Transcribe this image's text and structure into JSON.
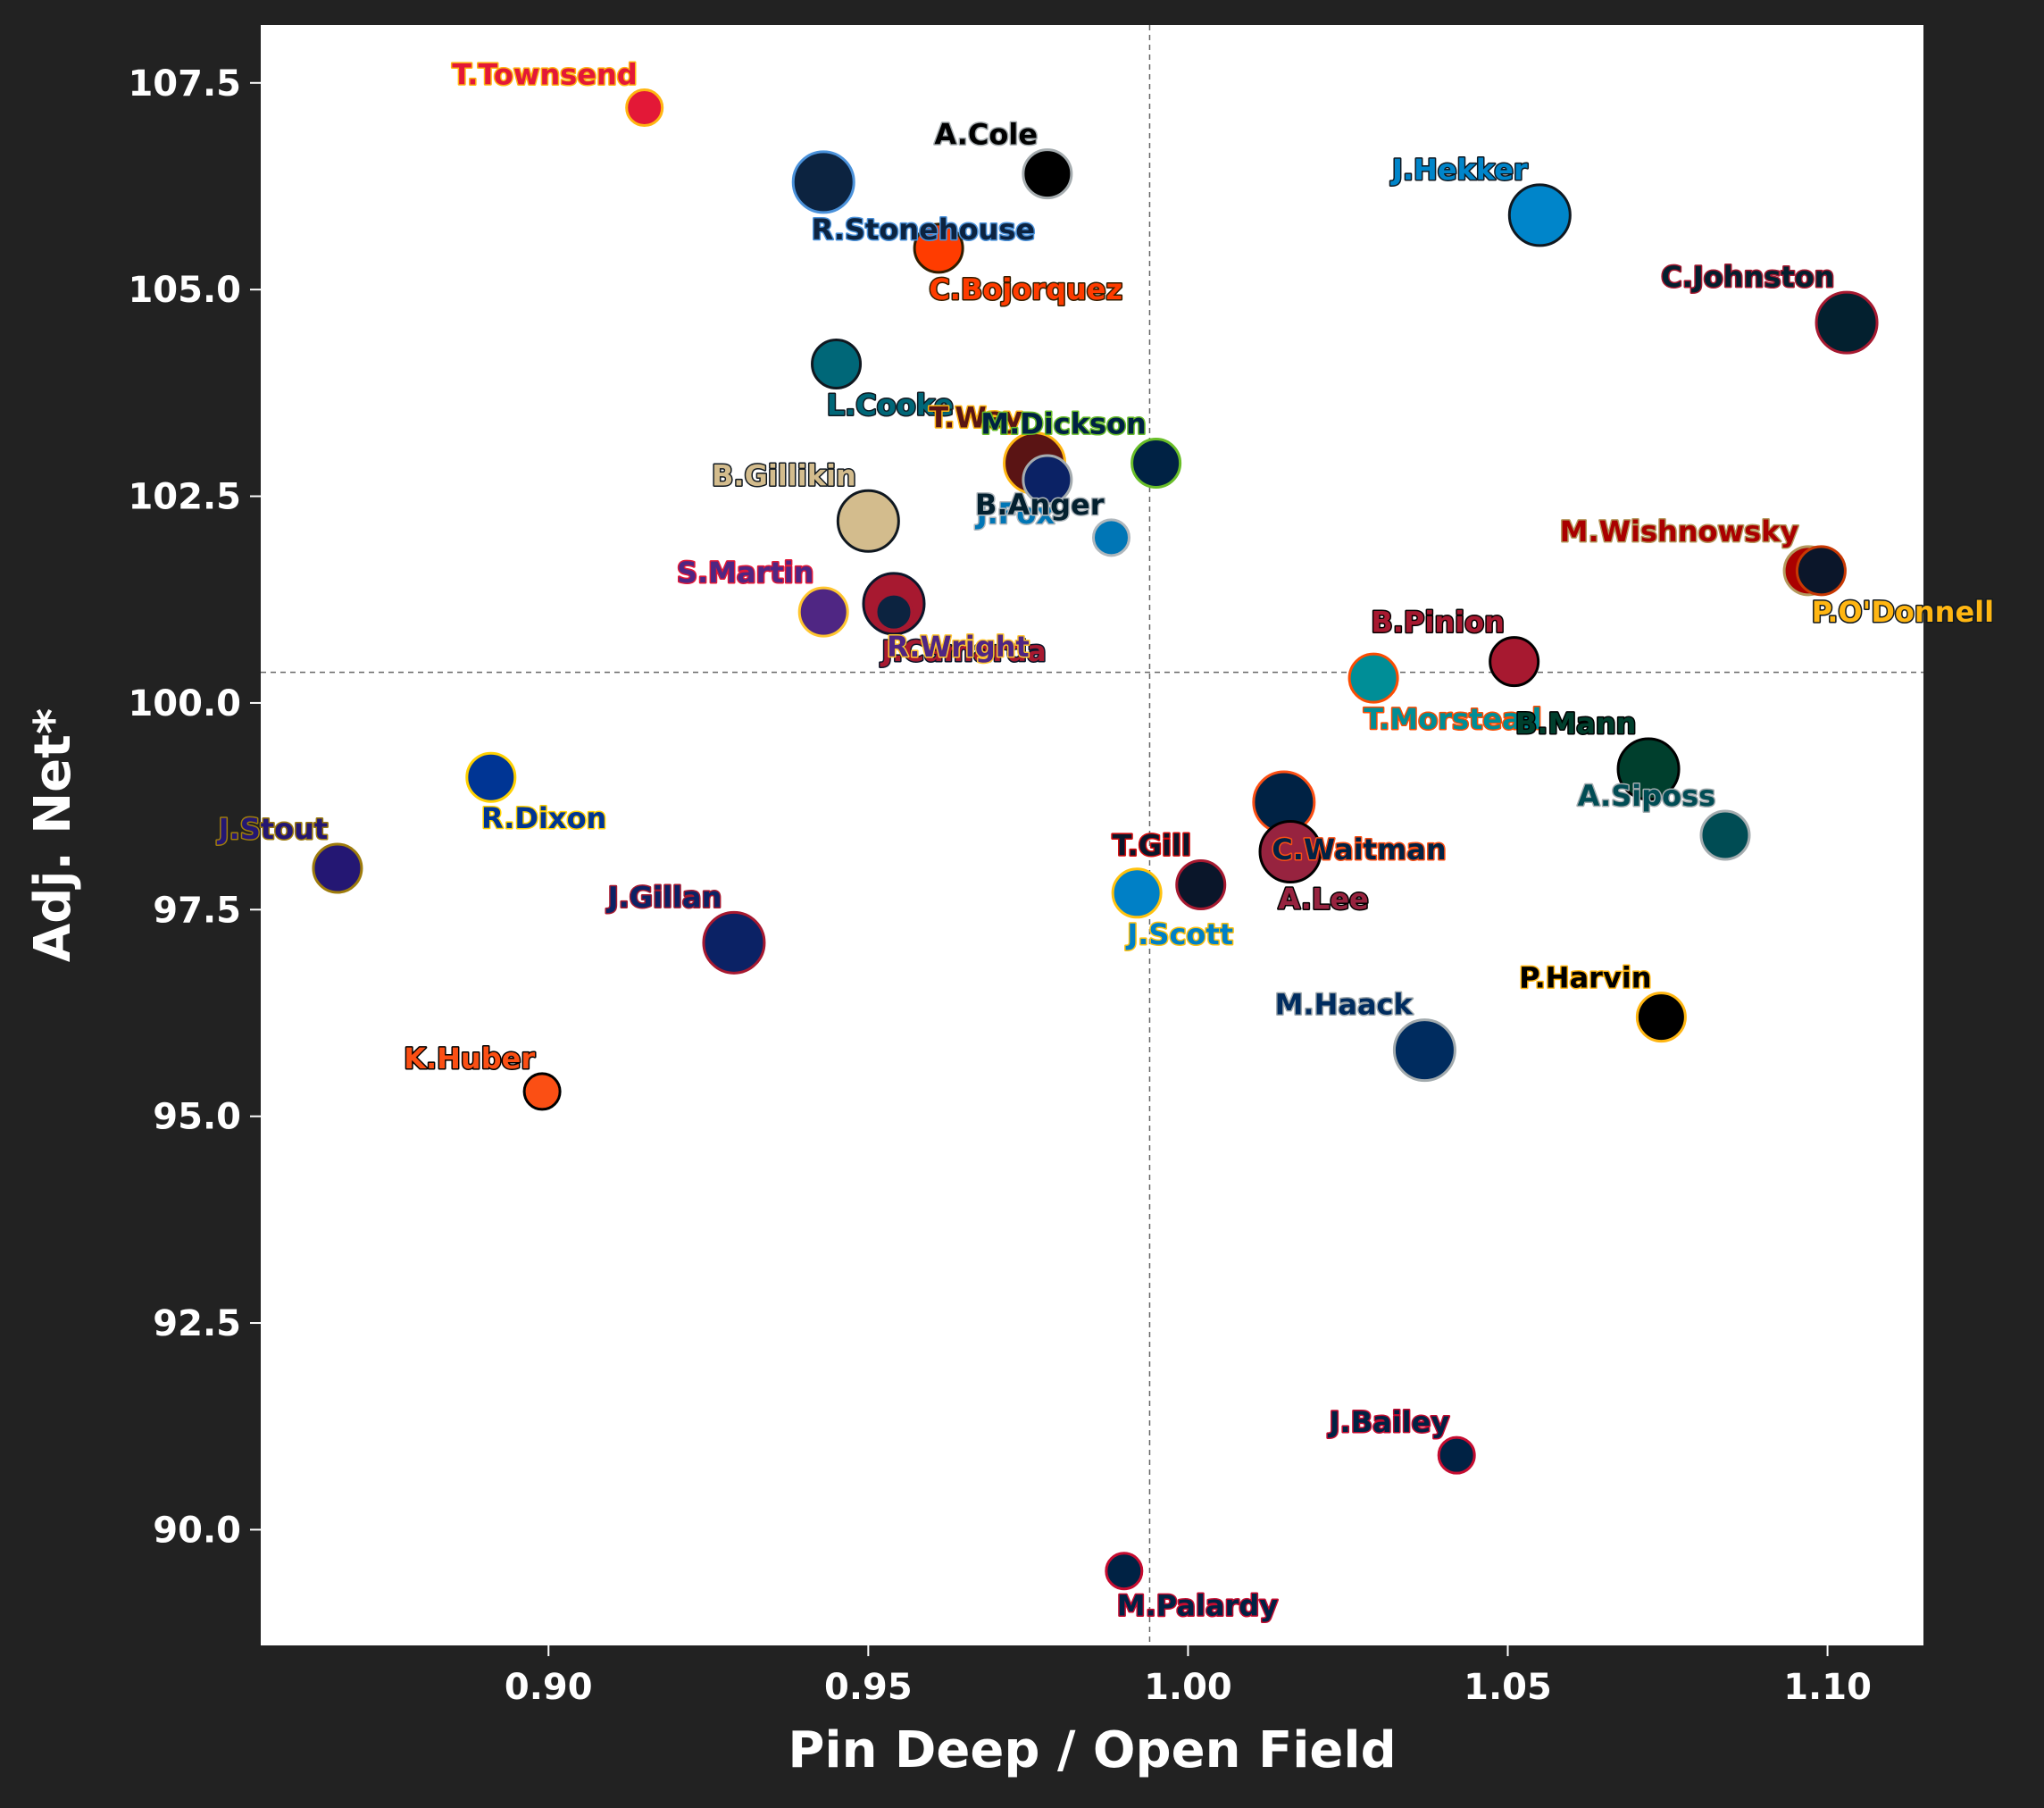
{
  "chart_data": {
    "type": "scatter",
    "xlabel": "Pin Deep / Open Field",
    "ylabel": "Adj. Net*",
    "xlim": [
      0.855,
      1.115
    ],
    "ylim": [
      88.6,
      108.2
    ],
    "xticks": [
      "0.90",
      "0.95",
      "1.00",
      "1.05",
      "1.10"
    ],
    "yticks": [
      "90.0",
      "92.5",
      "95.0",
      "97.5",
      "100.0",
      "102.5",
      "105.0",
      "107.5"
    ],
    "reference_lines": {
      "x": 0.994,
      "y": 100.37
    },
    "grid": false,
    "points": [
      {
        "label": "T.Townsend",
        "x": 0.915,
        "y": 107.2,
        "size": "small",
        "fill": "#e31837",
        "edge": "#ffb612",
        "text": "#e31837",
        "outline": "#ffb612",
        "label_pos": "tl"
      },
      {
        "label": "A.Cole",
        "x": 0.978,
        "y": 106.4,
        "size": "medium",
        "fill": "#000000",
        "edge": "#a5acaf",
        "text": "#000000",
        "outline": "#a5acaf",
        "label_pos": "tl"
      },
      {
        "label": "R.Stonehouse",
        "x": 0.943,
        "y": 106.3,
        "size": "large",
        "fill": "#0c2340",
        "edge": "#4b92db",
        "text": "#0c2340",
        "outline": "#4b92db",
        "label_pos": "br"
      },
      {
        "label": "J.Hekker",
        "x": 1.055,
        "y": 105.9,
        "size": "large",
        "fill": "#0085ca",
        "edge": "#101820",
        "text": "#0085ca",
        "outline": "#101820",
        "label_pos": "tl"
      },
      {
        "label": "C.Bojorquez",
        "x": 0.961,
        "y": 105.5,
        "size": "medium",
        "fill": "#ff3c00",
        "edge": "#311d00",
        "text": "#ff3c00",
        "outline": "#311d00",
        "label_pos": "br"
      },
      {
        "label": "C.Johnston",
        "x": 1.103,
        "y": 104.6,
        "size": "large",
        "fill": "#03202f",
        "edge": "#a71930",
        "text": "#03202f",
        "outline": "#a71930",
        "label_pos": "tl"
      },
      {
        "label": "L.Cooke",
        "x": 0.945,
        "y": 104.1,
        "size": "medium",
        "fill": "#006778",
        "edge": "#101820",
        "text": "#006778",
        "outline": "#101820",
        "label_pos": "br"
      },
      {
        "label": "T.Way",
        "x": 0.976,
        "y": 102.9,
        "size": "large",
        "fill": "#5a1414",
        "edge": "#ffb612",
        "text": "#5a1414",
        "outline": "#ffb612",
        "label_pos": "tl"
      },
      {
        "label": "M.Dickson",
        "x": 0.995,
        "y": 102.9,
        "size": "medium",
        "fill": "#002244",
        "edge": "#69be28",
        "text": "#002244",
        "outline": "#69be28",
        "label_pos": "tl"
      },
      {
        "label": "J.Fox",
        "x": 0.978,
        "y": 102.7,
        "size": "medium",
        "fill": "#0b2265",
        "edge": "#a5acaf",
        "text": "#0076b6",
        "outline": "#b0b7bc",
        "label_pos": "bl"
      },
      {
        "label": "B.Gillikin",
        "x": 0.95,
        "y": 102.2,
        "size": "large",
        "fill": "#d3bc8d",
        "edge": "#101820",
        "text": "#d3bc8d",
        "outline": "#101820",
        "label_pos": "tl"
      },
      {
        "label": "B.Anger",
        "x": 0.988,
        "y": 102.0,
        "size": "small",
        "fill": "#0076b6",
        "edge": "#b0b7bc",
        "text": "#03202f",
        "outline": "#b0b7bc",
        "label_pos": "tl"
      },
      {
        "label": "M.Wishnowsky",
        "x": 1.097,
        "y": 101.6,
        "size": "medium",
        "fill": "#aa0000",
        "edge": "#b3995d",
        "text": "#aa0000",
        "outline": "#b3995d",
        "label_pos": "tl"
      },
      {
        "label": "P.O'Donnell",
        "x": 1.099,
        "y": 101.6,
        "size": "medium",
        "fill": "#0b162a",
        "edge": "#c83803",
        "text": "#ffb612",
        "outline": "#101820",
        "label_pos": "br"
      },
      {
        "label": "J.Camarda",
        "x": 0.954,
        "y": 101.2,
        "size": "large",
        "fill": "#a71930",
        "edge": "#0b162a",
        "text": "#a71930",
        "outline": "#0b162a",
        "label_pos": "br"
      },
      {
        "label": "S.Martin",
        "x": 0.943,
        "y": 101.1,
        "size": "medium",
        "fill": "#4f2683",
        "edge": "#ffc62f",
        "text": "#4f2683",
        "outline": "#e31837",
        "label_pos": "tl"
      },
      {
        "label": "R.Wright",
        "x": 0.954,
        "y": 101.1,
        "size": "small",
        "fill": "#0c2340",
        "edge": "#a71930",
        "text": "#4f2683",
        "outline": "#ffc62f",
        "label_pos": "br"
      },
      {
        "label": "B.Pinion",
        "x": 1.051,
        "y": 100.5,
        "size": "medium",
        "fill": "#a71930",
        "edge": "#000000",
        "text": "#a71930",
        "outline": "#000000",
        "label_pos": "tl"
      },
      {
        "label": "T.Morstead",
        "x": 1.029,
        "y": 100.3,
        "size": "medium",
        "fill": "#008e97",
        "edge": "#fc4c02",
        "text": "#008e97",
        "outline": "#fc4c02",
        "label_pos": "br"
      },
      {
        "label": "B.Mann",
        "x": 1.072,
        "y": 99.2,
        "size": "large",
        "fill": "#003f2d",
        "edge": "#000000",
        "text": "#003f2d",
        "outline": "#000000",
        "label_pos": "tl"
      },
      {
        "label": "R.Dixon",
        "x": 0.891,
        "y": 99.1,
        "size": "medium",
        "fill": "#003594",
        "edge": "#ffd100",
        "text": "#003594",
        "outline": "#ffd100",
        "label_pos": "br"
      },
      {
        "label": "C.Waitman",
        "x": 1.015,
        "y": 98.8,
        "size": "large",
        "fill": "#002244",
        "edge": "#fb4f14",
        "text": "#002244",
        "outline": "#fb4f14",
        "label_pos": "br"
      },
      {
        "label": "A.Siposs",
        "x": 1.084,
        "y": 98.4,
        "size": "medium",
        "fill": "#004c54",
        "edge": "#a5acaf",
        "text": "#004c54",
        "outline": "#a5acaf",
        "label_pos": "tl"
      },
      {
        "label": "A.Lee",
        "x": 1.016,
        "y": 98.2,
        "size": "large",
        "fill": "#97233f",
        "edge": "#000000",
        "text": "#97233f",
        "outline": "#000000",
        "label_pos": "br"
      },
      {
        "label": "J.Stout",
        "x": 0.867,
        "y": 98.0,
        "size": "medium",
        "fill": "#241773",
        "edge": "#9e7c0c",
        "text": "#241773",
        "outline": "#9e7c0c",
        "label_pos": "tl"
      },
      {
        "label": "T.Gill",
        "x": 1.002,
        "y": 97.8,
        "size": "medium",
        "fill": "#0a162a",
        "edge": "#a71930",
        "text": "#0a162a",
        "outline": "#d50a0a",
        "label_pos": "tl"
      },
      {
        "label": "J.Scott",
        "x": 0.992,
        "y": 97.7,
        "size": "medium",
        "fill": "#0080c6",
        "edge": "#ffc20e",
        "text": "#0080c6",
        "outline": "#ffc20e",
        "label_pos": "br"
      },
      {
        "label": "J.Gillan",
        "x": 0.929,
        "y": 97.1,
        "size": "large",
        "fill": "#0b2265",
        "edge": "#a71930",
        "text": "#0b2265",
        "outline": "#a71930",
        "label_pos": "tl"
      },
      {
        "label": "P.Harvin",
        "x": 1.074,
        "y": 96.2,
        "size": "medium",
        "fill": "#000000",
        "edge": "#ffb612",
        "text": "#000000",
        "outline": "#ffb612",
        "label_pos": "tl"
      },
      {
        "label": "M.Haack",
        "x": 1.037,
        "y": 95.8,
        "size": "large",
        "fill": "#002c5f",
        "edge": "#a2aaad",
        "text": "#002c5f",
        "outline": "#a2aaad",
        "label_pos": "tl"
      },
      {
        "label": "K.Huber",
        "x": 0.899,
        "y": 95.3,
        "size": "small",
        "fill": "#fb4f14",
        "edge": "#000000",
        "text": "#fb4f14",
        "outline": "#000000",
        "label_pos": "tl"
      },
      {
        "label": "J.Bailey",
        "x": 1.042,
        "y": 90.9,
        "size": "small",
        "fill": "#002244",
        "edge": "#c60c30",
        "text": "#002244",
        "outline": "#c60c30",
        "label_pos": "tl"
      },
      {
        "label": "M.Palardy",
        "x": 0.99,
        "y": 89.5,
        "size": "small",
        "fill": "#002244",
        "edge": "#c60c30",
        "text": "#002244",
        "outline": "#c60c30",
        "label_pos": "br"
      }
    ]
  }
}
